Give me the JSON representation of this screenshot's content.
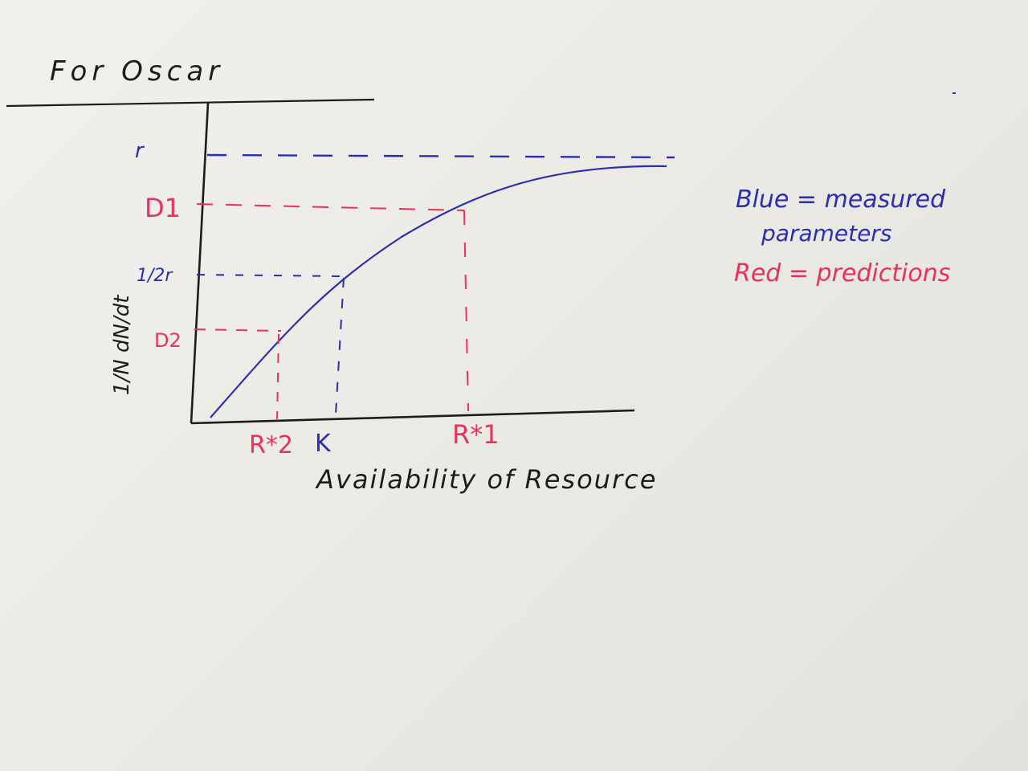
{
  "note": {
    "title": "For Oscar"
  },
  "graph": {
    "y_axis_label": "1/N dN/dt",
    "x_axis_label": "Availability of Resource",
    "y_ticks": {
      "r": "r",
      "d1": "D1",
      "half_r": "1/2r",
      "d2": "D2"
    },
    "x_ticks": {
      "r_star_2": "R*2",
      "k": "K",
      "r_star_1": "R*1"
    }
  },
  "legend": {
    "blue_line1": "Blue = measured",
    "blue_line2": "parameters",
    "red_line": "Red = predictions"
  },
  "colors": {
    "ink_black": "#1c1c1c",
    "ink_blue": "#2b2fae",
    "ink_red": "#e8325a"
  }
}
